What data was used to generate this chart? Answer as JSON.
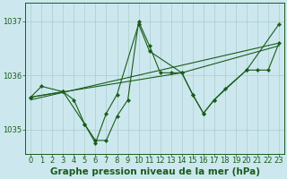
{
  "title": "Graphe pression niveau de la mer (hPa)",
  "bg_color": "#cce8ee",
  "grid_color": "#aacccc",
  "line_color": "#1a5c1a",
  "marker_color": "#1a5c1a",
  "xlim": [
    -0.5,
    23.5
  ],
  "ylim": [
    1034.55,
    1037.35
  ],
  "yticks": [
    1035,
    1036,
    1037
  ],
  "xticks": [
    0,
    1,
    2,
    3,
    4,
    5,
    6,
    7,
    8,
    9,
    10,
    11,
    12,
    13,
    14,
    15,
    16,
    17,
    18,
    19,
    20,
    21,
    22,
    23
  ],
  "lines": [
    {
      "x": [
        0,
        23
      ],
      "y": [
        1035.55,
        1036.6
      ]
    },
    {
      "x": [
        0,
        14,
        23
      ],
      "y": [
        1035.6,
        1036.05,
        1036.55
      ]
    },
    {
      "x": [
        0,
        1,
        3,
        5,
        6,
        7,
        8,
        9,
        10,
        11,
        12,
        13,
        14,
        15,
        16,
        17,
        18,
        20,
        21,
        22,
        23
      ],
      "y": [
        1035.6,
        1035.8,
        1035.7,
        1035.1,
        1034.8,
        1034.8,
        1035.25,
        1035.55,
        1037.0,
        1036.55,
        1036.05,
        1036.05,
        1036.05,
        1035.65,
        1035.3,
        1035.55,
        1035.75,
        1036.1,
        1036.1,
        1036.1,
        1036.6
      ]
    },
    {
      "x": [
        0,
        3,
        4,
        5,
        6,
        7,
        8,
        10,
        11,
        14,
        15,
        16,
        17,
        20,
        23
      ],
      "y": [
        1035.6,
        1035.7,
        1035.55,
        1035.1,
        1034.75,
        1035.3,
        1035.65,
        1036.95,
        1036.45,
        1036.05,
        1035.65,
        1035.3,
        1035.55,
        1036.1,
        1036.95
      ]
    }
  ],
  "title_fontsize": 7.5,
  "tick_fontsize": 6,
  "title_color": "#1a5c1a",
  "tick_color": "#1a5c1a",
  "spine_color": "#1a5c1a"
}
